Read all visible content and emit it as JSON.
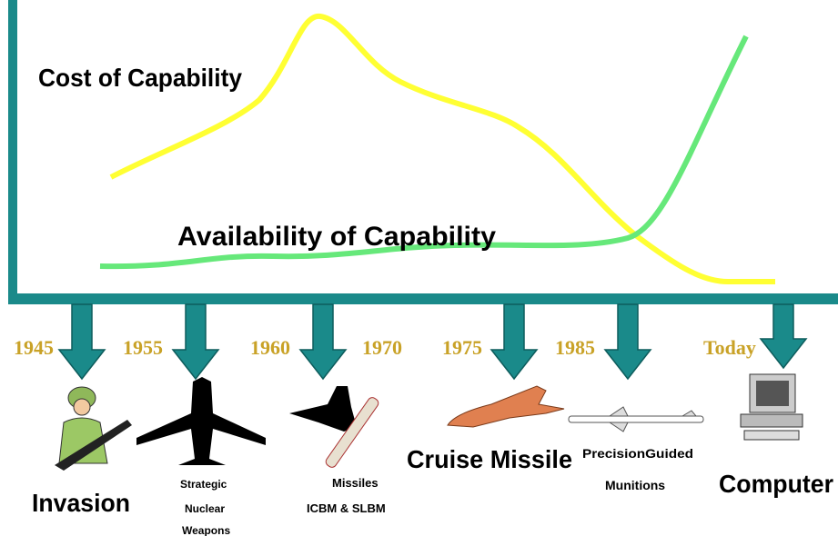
{
  "curves": {
    "cost_label": "Cost of Capability",
    "availability_label": "Availability of Capability"
  },
  "timeline": [
    {
      "year": "1945",
      "caption": [
        "Invasion"
      ]
    },
    {
      "year": "1955",
      "caption": [
        "Strategic",
        "Nuclear",
        "Weapons"
      ]
    },
    {
      "year": "1960",
      "caption": []
    },
    {
      "year": "1970",
      "caption": [
        "Missiles",
        "ICBM & SLBM"
      ]
    },
    {
      "year": "1975",
      "caption": [
        "Cruise Missile"
      ]
    },
    {
      "year": "1985",
      "caption": [
        "PrecisionGuided",
        "Munitions"
      ]
    },
    {
      "year": "Today",
      "caption": [
        "Computer"
      ]
    }
  ]
}
